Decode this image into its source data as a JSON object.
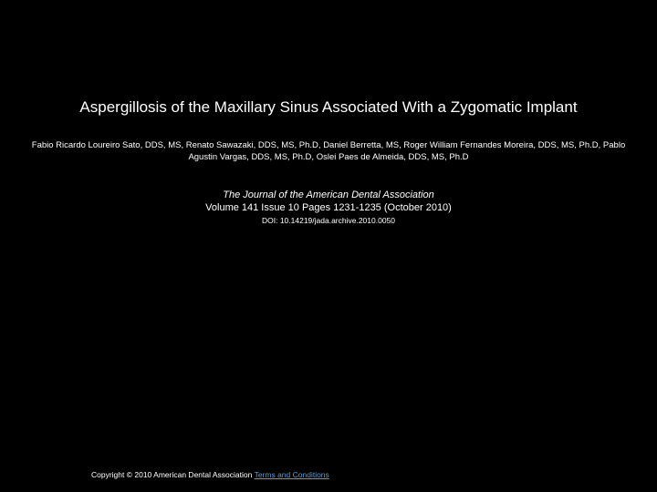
{
  "title": "Aspergillosis of the Maxillary Sinus Associated With a Zygomatic Implant",
  "authors": "Fabio Ricardo Loureiro Sato, DDS, MS, Renato Sawazaki, DDS, MS, Ph.D, Daniel Berretta, MS, Roger William Fernandes Moreira, DDS, MS, Ph.D, Pablo Agustin Vargas, DDS, MS, Ph.D, Oslei Paes de Almeida, DDS, MS, Ph.D",
  "journal": "The Journal of the American Dental Association",
  "volume": "Volume 141 Issue 10 Pages 1231-1235 (October 2010)",
  "doi": "DOI: 10.14219/jada.archive.2010.0050",
  "copyright_prefix": "Copyright © 2010 American Dental Association ",
  "terms_link": "Terms and Conditions"
}
